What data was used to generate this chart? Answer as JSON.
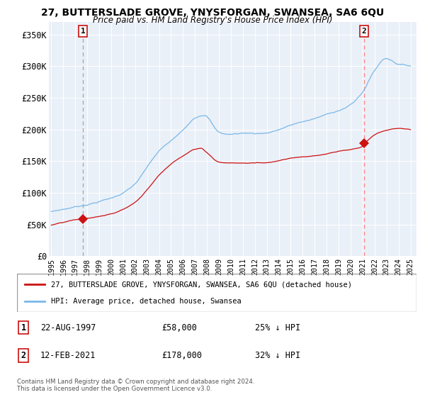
{
  "title_line1": "27, BUTTERSLADE GROVE, YNYSFORGAN, SWANSEA, SA6 6QU",
  "title_line2": "Price paid vs. HM Land Registry's House Price Index (HPI)",
  "ylabel_ticks": [
    "£0",
    "£50K",
    "£100K",
    "£150K",
    "£200K",
    "£250K",
    "£300K",
    "£350K"
  ],
  "ylabel_values": [
    0,
    50000,
    100000,
    150000,
    200000,
    250000,
    300000,
    350000
  ],
  "ylim": [
    0,
    370000
  ],
  "xlim_start": 1994.8,
  "xlim_end": 2025.5,
  "hpi_color": "#7ab8e8",
  "price_color": "#cc1111",
  "dash1_color": "#aaaaaa",
  "dash2_color": "#ff8888",
  "background_color": "#eaf0f8",
  "marker_color": "#cc1111",
  "sale1_x": 1997.64,
  "sale1_y": 58000,
  "sale2_x": 2021.12,
  "sale2_y": 178000,
  "legend_label1": "27, BUTTERSLADE GROVE, YNYSFORGAN, SWANSEA, SA6 6QU (detached house)",
  "legend_label2": "HPI: Average price, detached house, Swansea",
  "note1_num": "1",
  "note1_date": "22-AUG-1997",
  "note1_price": "£58,000",
  "note1_hpi": "25% ↓ HPI",
  "note2_num": "2",
  "note2_date": "12-FEB-2021",
  "note2_price": "£178,000",
  "note2_hpi": "32% ↓ HPI",
  "copyright_text": "Contains HM Land Registry data © Crown copyright and database right 2024.\nThis data is licensed under the Open Government Licence v3.0."
}
